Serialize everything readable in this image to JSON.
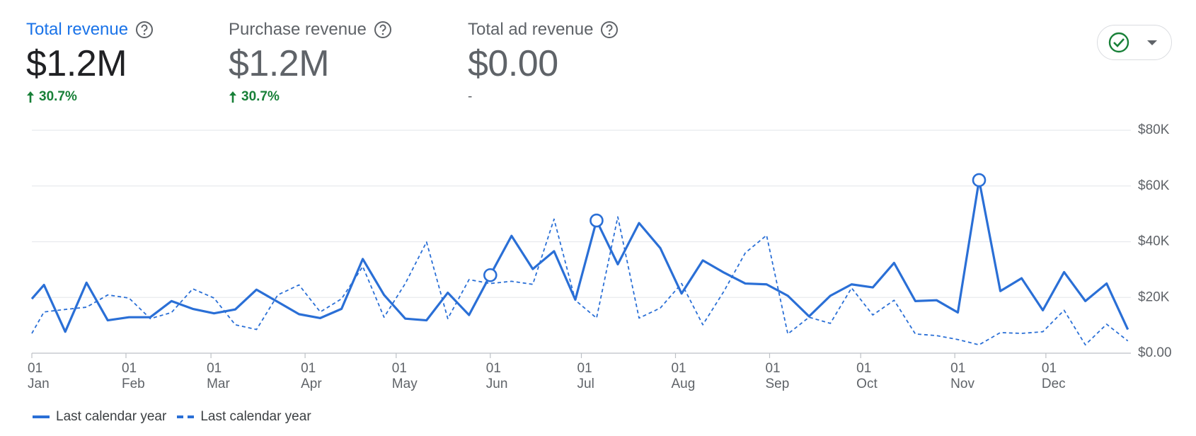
{
  "metrics": [
    {
      "title": "Total revenue",
      "value": "$1.2M",
      "change": "30.7%",
      "direction": "up",
      "active": true
    },
    {
      "title": "Purchase revenue",
      "value": "$1.2M",
      "change": "30.7%",
      "direction": "up"
    },
    {
      "title": "Total ad revenue",
      "value": "$0.00",
      "change": "-"
    }
  ],
  "chart_data": {
    "type": "line",
    "x": [
      0,
      4,
      11,
      18,
      25,
      32,
      39,
      46,
      53,
      60,
      67,
      74,
      81,
      88,
      95,
      102,
      109,
      116,
      123,
      130,
      137,
      144,
      151,
      158,
      165,
      172,
      179,
      186,
      193,
      200,
      207,
      214,
      221,
      228,
      235,
      242,
      249,
      256,
      263,
      270,
      277,
      284,
      291,
      298,
      305,
      312,
      319,
      326,
      333,
      340,
      347,
      354,
      361
    ],
    "series": [
      {
        "name": "Last calendar year",
        "color": "#2a6fd6",
        "style": "solid",
        "highlighted_points": [
          22,
          27,
          45
        ],
        "values": [
          19500,
          24500,
          7700,
          25300,
          11800,
          12900,
          12900,
          18700,
          15900,
          14300,
          15700,
          22800,
          18400,
          14000,
          12600,
          15900,
          33800,
          20900,
          12400,
          11800,
          21700,
          13700,
          28000,
          42100,
          30200,
          36600,
          19200,
          47600,
          31900,
          46700,
          37700,
          21400,
          33300,
          28900,
          25000,
          24700,
          20600,
          13200,
          20600,
          24700,
          23600,
          32400,
          18700,
          19000,
          14600,
          62100,
          22300,
          26900,
          15400,
          29100,
          18700,
          25000,
          8500
        ]
      },
      {
        "name": "Last calendar year",
        "color": "#2a6fd6",
        "style": "dashed",
        "values": [
          7100,
          14800,
          15700,
          16500,
          20900,
          19800,
          12400,
          14600,
          23100,
          19800,
          10200,
          8500,
          20900,
          24500,
          14800,
          19500,
          31100,
          12900,
          25000,
          39900,
          12400,
          26400,
          25000,
          25800,
          24700,
          48100,
          19000,
          12600,
          48900,
          12600,
          16200,
          25000,
          10200,
          22300,
          36000,
          42300,
          6900,
          12900,
          10700,
          23400,
          13700,
          19000,
          6900,
          6300,
          4900,
          3000,
          7400,
          7100,
          7700,
          15400,
          3000,
          10400,
          4400
        ]
      }
    ],
    "xlim": [
      0,
      362
    ],
    "xticks": [
      {
        "value": 0,
        "label": "01\nJan"
      },
      {
        "value": 31,
        "label": "01\nFeb"
      },
      {
        "value": 59,
        "label": "01\nMar"
      },
      {
        "value": 90,
        "label": "01\nApr"
      },
      {
        "value": 120,
        "label": "01\nMay"
      },
      {
        "value": 151,
        "label": "01\nJun"
      },
      {
        "value": 181,
        "label": "01\nJul"
      },
      {
        "value": 212,
        "label": "01\nAug"
      },
      {
        "value": 243,
        "label": "01\nSep"
      },
      {
        "value": 273,
        "label": "01\nOct"
      },
      {
        "value": 304,
        "label": "01\nNov"
      },
      {
        "value": 334,
        "label": "01\nDec"
      }
    ],
    "ylim": [
      0,
      80000
    ],
    "yticks": [
      {
        "value": 0,
        "label": "$0.00"
      },
      {
        "value": 20000,
        "label": "$20K"
      },
      {
        "value": 40000,
        "label": "$40K"
      },
      {
        "value": 60000,
        "label": "$60K"
      },
      {
        "value": 80000,
        "label": "$80K"
      }
    ],
    "grid": true
  }
}
